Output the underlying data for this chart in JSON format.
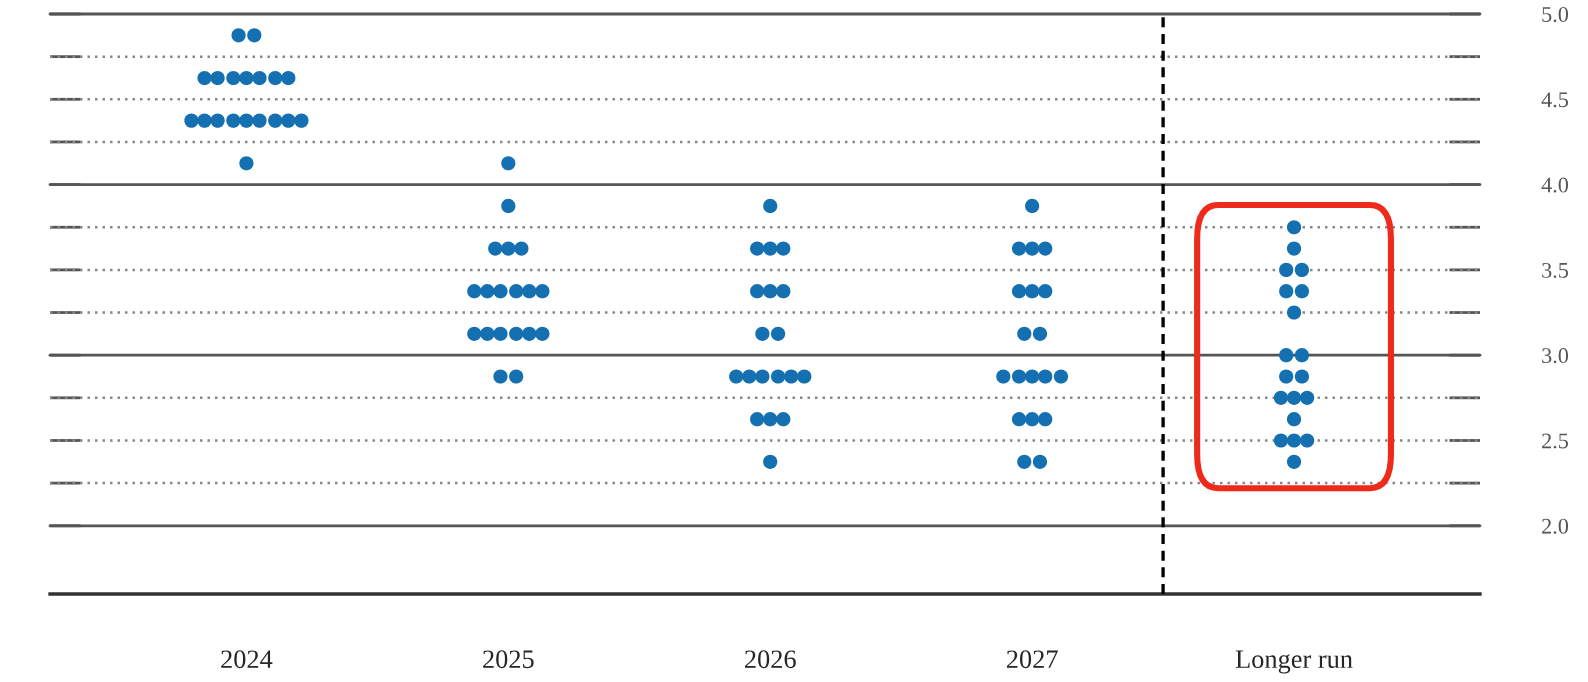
{
  "chart_data": {
    "type": "scatter",
    "series": [
      {
        "color": "#1470b0",
        "x": [
          2023.97,
          2024.03,
          2023.84,
          2023.89,
          2023.95,
          2024,
          2024.05,
          2024.11,
          2024.16,
          2023.79,
          2023.84,
          2023.89,
          2023.95,
          2024,
          2024.05,
          2024.11,
          2024.16,
          2024.21,
          2024,
          2025,
          2025,
          2024.95,
          2025,
          2025.05,
          2024.87,
          2024.92,
          2024.97,
          2025.03,
          2025.08,
          2025.13,
          2024.87,
          2024.92,
          2024.97,
          2025.03,
          2025.08,
          2025.13,
          2024.97,
          2025.03,
          2026,
          2025.95,
          2026,
          2026.05,
          2025.95,
          2026,
          2026.05,
          2025.97,
          2026.03,
          2025.87,
          2025.92,
          2025.97,
          2026.03,
          2026.08,
          2026.13,
          2025.95,
          2026,
          2026.05,
          2026,
          2027,
          2026.95,
          2027,
          2027.05,
          2026.95,
          2027,
          2027.05,
          2026.97,
          2027.03,
          2026.89,
          2026.95,
          2027,
          2027.05,
          2027.11,
          2026.95,
          2027,
          2027.05,
          2026.97,
          2027.03,
          2028,
          2028,
          2027.97,
          2028.03,
          2027.97,
          2028.03,
          2028,
          2027.97,
          2028.03,
          2027.97,
          2028.03,
          2027.95,
          2028,
          2028.05,
          2028,
          2027.95,
          2028,
          2028.05,
          2028
        ],
        "values": [
          4.875,
          4.875,
          4.625,
          4.625,
          4.625,
          4.625,
          4.625,
          4.625,
          4.625,
          4.375,
          4.375,
          4.375,
          4.375,
          4.375,
          4.375,
          4.375,
          4.375,
          4.375,
          4.125,
          4.125,
          3.875,
          3.625,
          3.625,
          3.625,
          3.375,
          3.375,
          3.375,
          3.375,
          3.375,
          3.375,
          3.125,
          3.125,
          3.125,
          3.125,
          3.125,
          3.125,
          2.875,
          2.875,
          3.875,
          3.625,
          3.625,
          3.625,
          3.375,
          3.375,
          3.375,
          3.125,
          3.125,
          2.875,
          2.875,
          2.875,
          2.875,
          2.875,
          2.875,
          2.625,
          2.625,
          2.625,
          2.375,
          3.875,
          3.625,
          3.625,
          3.625,
          3.375,
          3.375,
          3.375,
          3.125,
          3.125,
          2.875,
          2.875,
          2.875,
          2.875,
          2.875,
          2.625,
          2.625,
          2.625,
          2.375,
          2.375,
          3.75,
          3.625,
          3.5,
          3.5,
          3.375,
          3.375,
          3.25,
          3.0,
          3.0,
          2.875,
          2.875,
          2.75,
          2.75,
          2.75,
          2.625,
          2.5,
          2.5,
          2.5,
          2.375
        ]
      }
    ],
    "xlim": [
      2023.25,
      2028.71
    ],
    "xticks": [
      2024,
      2025,
      2026,
      2027,
      {
        "value": 2028,
        "label": "Longer run"
      }
    ],
    "ylim": [
      1.6,
      5.0
    ],
    "yticks": [
      {
        "value": 2,
        "label": "2.0"
      },
      {
        "value": 2.25,
        "label": null
      },
      {
        "value": 2.5,
        "label": "2.5"
      },
      {
        "value": 2.75,
        "label": null
      },
      {
        "value": 3,
        "label": "3.0"
      },
      {
        "value": 3.25,
        "label": null
      },
      {
        "value": 3.5,
        "label": "3.5"
      },
      {
        "value": 3.75,
        "label": null
      },
      {
        "value": 4,
        "label": "4.0"
      },
      {
        "value": 4.25,
        "label": null
      },
      {
        "value": 4.5,
        "label": "4.5"
      },
      {
        "value": 4.75,
        "label": null
      },
      {
        "value": 5,
        "label": "5.0"
      }
    ],
    "grid": "y",
    "marker": "circle",
    "ref_lines": [
      {
        "axis": "x",
        "value": 2027.5,
        "color": "#000000",
        "line_style": "dashed"
      }
    ]
  }
}
